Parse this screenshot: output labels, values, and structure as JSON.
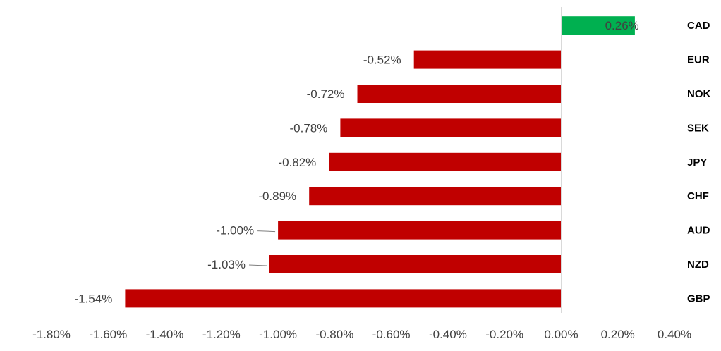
{
  "chart_data": {
    "type": "bar",
    "orientation": "horizontal",
    "categories": [
      "CAD",
      "EUR",
      "NOK",
      "SEK",
      "JPY",
      "CHF",
      "AUD",
      "NZD",
      "GBP"
    ],
    "values": [
      0.26,
      -0.52,
      -0.72,
      -0.78,
      -0.82,
      -0.89,
      -1.0,
      -1.03,
      -1.54
    ],
    "data_labels": [
      "0.26%",
      "-0.52%",
      "-0.72%",
      "-0.78%",
      "-0.82%",
      "-0.89%",
      "-1.00%",
      "-1.03%",
      "-1.54%"
    ],
    "xlim": [
      -1.8,
      0.4
    ],
    "x_ticks": [
      -1.8,
      -1.6,
      -1.4,
      -1.2,
      -1.0,
      -0.8,
      -0.6,
      -0.4,
      -0.2,
      0.0,
      0.2,
      0.4
    ],
    "x_tick_labels": [
      "-1.80%",
      "-1.60%",
      "-1.40%",
      "-1.20%",
      "-1.00%",
      "-0.80%",
      "-0.60%",
      "-0.40%",
      "-0.20%",
      "0.00%",
      "0.20%",
      "0.40%"
    ],
    "category_label_position": "right",
    "grid": false,
    "legend": "none",
    "colors": {
      "positive": "#00B050",
      "negative": "#C00000",
      "axis": "#D9D9D9",
      "leader": "#7F7F7F"
    }
  }
}
